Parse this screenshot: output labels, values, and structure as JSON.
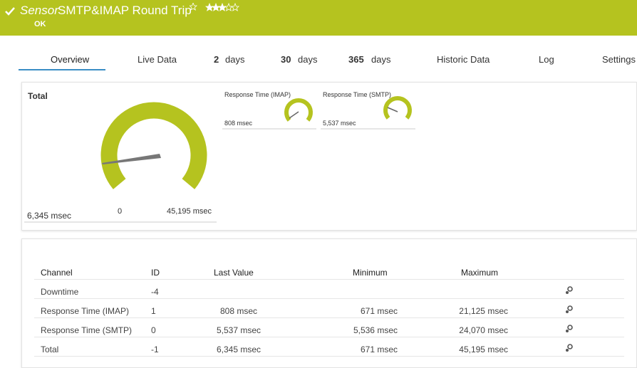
{
  "header": {
    "prefix": "Sensor",
    "name": "SMTP&IMAP Round Trip",
    "status": "OK"
  },
  "tabs": [
    {
      "label": "Overview"
    },
    {
      "label": "Live Data"
    },
    {
      "num": "2",
      "label": "days"
    },
    {
      "num": "30",
      "label": "days"
    },
    {
      "num": "365",
      "label": "days"
    },
    {
      "label": "Historic Data"
    },
    {
      "label": "Log"
    },
    {
      "label": "Settings"
    }
  ],
  "gauges": {
    "total": {
      "title": "Total",
      "value": "6,345 msec",
      "min": "0",
      "max": "45,195 msec"
    },
    "small": [
      {
        "title": "Response Time (IMAP)",
        "value": "808 msec"
      },
      {
        "title": "Response Time (SMTP)",
        "value": "5,537 msec"
      }
    ]
  },
  "table": {
    "columns": [
      "Channel",
      "ID",
      "Last Value",
      "Minimum",
      "Maximum"
    ],
    "rows": [
      {
        "channel": "Downtime",
        "id": "-4"
      },
      {
        "channel": "Response Time (IMAP)",
        "id": "1",
        "last": "808 msec",
        "min": "671 msec",
        "max": "21,125 msec"
      },
      {
        "channel": "Response Time (SMTP)",
        "id": "0",
        "last": "5,537 msec",
        "min": "5,536 msec",
        "max": "24,070 msec"
      },
      {
        "channel": "Total",
        "id": "-1",
        "last": "6,345 msec",
        "min": "671 msec",
        "max": "45,195 msec"
      }
    ]
  }
}
